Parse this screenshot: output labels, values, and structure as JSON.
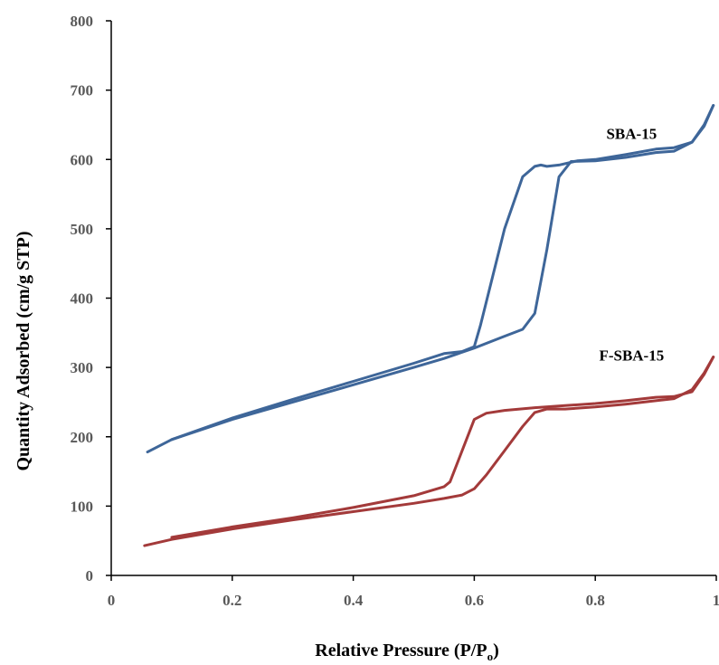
{
  "chart_data": {
    "type": "line",
    "title": "",
    "xlabel": "Relative Pressure (P/P",
    "xlabel_sub": "o",
    "xlabel_end": ")",
    "ylabel": "Quantity Adsorbed (cm/g STP)",
    "xlim": [
      0,
      1
    ],
    "ylim": [
      0,
      800
    ],
    "x_ticks": [
      "0",
      "0.2",
      "0.4",
      "0.6",
      "0.8",
      "1"
    ],
    "y_ticks": [
      "0",
      "100",
      "200",
      "300",
      "400",
      "500",
      "600",
      "700",
      "800"
    ],
    "grid": false,
    "legend": "none",
    "series": [
      {
        "name": "SBA-15",
        "color": "#3E6699",
        "branches": [
          {
            "branch": "adsorption",
            "x": [
              0.06,
              0.1,
              0.2,
              0.3,
              0.4,
              0.5,
              0.55,
              0.6,
              0.65,
              0.68,
              0.7,
              0.72,
              0.74,
              0.76,
              0.8,
              0.85,
              0.9,
              0.93,
              0.96,
              0.98,
              0.995
            ],
            "y": [
              178,
              196,
              225,
              250,
              275,
              300,
              313,
              328,
              345,
              355,
              378,
              470,
              575,
              597,
              598,
              603,
              610,
              612,
              625,
              650,
              678
            ]
          },
          {
            "branch": "desorption",
            "x": [
              0.995,
              0.98,
              0.96,
              0.93,
              0.9,
              0.85,
              0.8,
              0.77,
              0.74,
              0.72,
              0.71,
              0.7,
              0.68,
              0.65,
              0.63,
              0.61,
              0.6,
              0.58,
              0.55,
              0.5,
              0.4,
              0.3,
              0.2,
              0.1
            ],
            "y": [
              678,
              648,
              625,
              617,
              615,
              607,
              600,
              598,
              592,
              590,
              592,
              590,
              575,
              500,
              430,
              360,
              330,
              323,
              320,
              306,
              280,
              254,
              227,
              196
            ]
          }
        ]
      },
      {
        "name": "F-SBA-15",
        "color": "#A33A3A",
        "branches": [
          {
            "branch": "adsorption",
            "x": [
              0.055,
              0.1,
              0.2,
              0.3,
              0.4,
              0.5,
              0.55,
              0.58,
              0.6,
              0.62,
              0.65,
              0.68,
              0.7,
              0.72,
              0.75,
              0.8,
              0.85,
              0.9,
              0.93,
              0.96,
              0.98,
              0.995
            ],
            "y": [
              43,
              52,
              67,
              80,
              92,
              104,
              111,
              116,
              125,
              145,
              180,
              215,
              235,
              240,
              240,
              243,
              247,
              252,
              255,
              268,
              292,
              315
            ],
            "x_note": ""
          },
          {
            "branch": "desorption",
            "x": [
              0.995,
              0.98,
              0.96,
              0.93,
              0.9,
              0.85,
              0.8,
              0.75,
              0.7,
              0.65,
              0.62,
              0.6,
              0.58,
              0.56,
              0.55,
              0.5,
              0.4,
              0.3,
              0.2,
              0.1
            ],
            "y": [
              315,
              290,
              265,
              258,
              257,
              252,
              248,
              245,
              242,
              238,
              234,
              225,
              180,
              135,
              128,
              115,
              98,
              83,
              70,
              55
            ]
          }
        ]
      }
    ]
  }
}
